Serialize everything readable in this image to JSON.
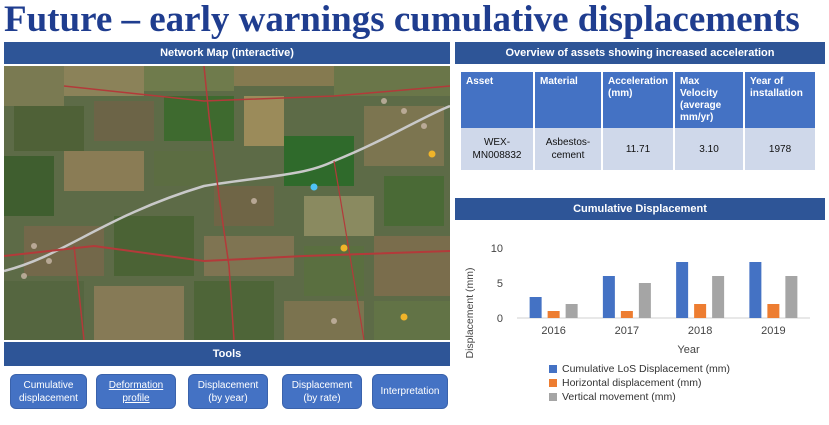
{
  "title": "Future – early warnings cumulative displacements",
  "map": {
    "header": "Network Map (interactive)"
  },
  "tools": {
    "header": "Tools",
    "buttons": [
      {
        "label1": "Cumulative",
        "label2": "displacement"
      },
      {
        "label1": "Deformation",
        "label2": "profile"
      },
      {
        "label1": "Displacement",
        "label2": "(by year)"
      },
      {
        "label1": "Displacement",
        "label2": "(by rate)"
      },
      {
        "label1": "Interpretation",
        "label2": ""
      }
    ]
  },
  "assets": {
    "header": "Overview of assets showing increased acceleration",
    "columns": [
      "Asset",
      "Material",
      "Acceleration (mm)",
      "Max Velocity (average mm/yr)",
      "Year of installation"
    ],
    "rows": [
      {
        "asset": "WEX-MN008832",
        "material": "Asbestos-cement",
        "acceleration": "11.71",
        "max_velocity": "3.10",
        "year": "1978"
      }
    ]
  },
  "chart": {
    "header": "Cumulative Displacement"
  },
  "colors": {
    "header_blue": "#2e5597",
    "button_blue": "#4472c4",
    "title_navy": "#1f3d8f",
    "cell_fill": "#cfd8ea"
  },
  "chart_data": {
    "type": "bar",
    "categories": [
      "2016",
      "2017",
      "2018",
      "2019"
    ],
    "series": [
      {
        "name": "Cumulative LoS Displacement (mm)",
        "values": [
          3,
          6,
          8,
          8
        ],
        "color": "#4472c4"
      },
      {
        "name": "Horizontal displacement (mm)",
        "values": [
          1,
          1,
          2,
          2
        ],
        "color": "#ed7d31"
      },
      {
        "name": "Vertical movement (mm)",
        "values": [
          2,
          5,
          6,
          6
        ],
        "color": "#a5a5a5"
      }
    ],
    "xlabel": "Year",
    "ylabel": "Displacement (mm)",
    "ylim": [
      0,
      10
    ],
    "yticks": [
      0,
      5,
      10
    ],
    "legend": "bottom",
    "grid": false
  }
}
